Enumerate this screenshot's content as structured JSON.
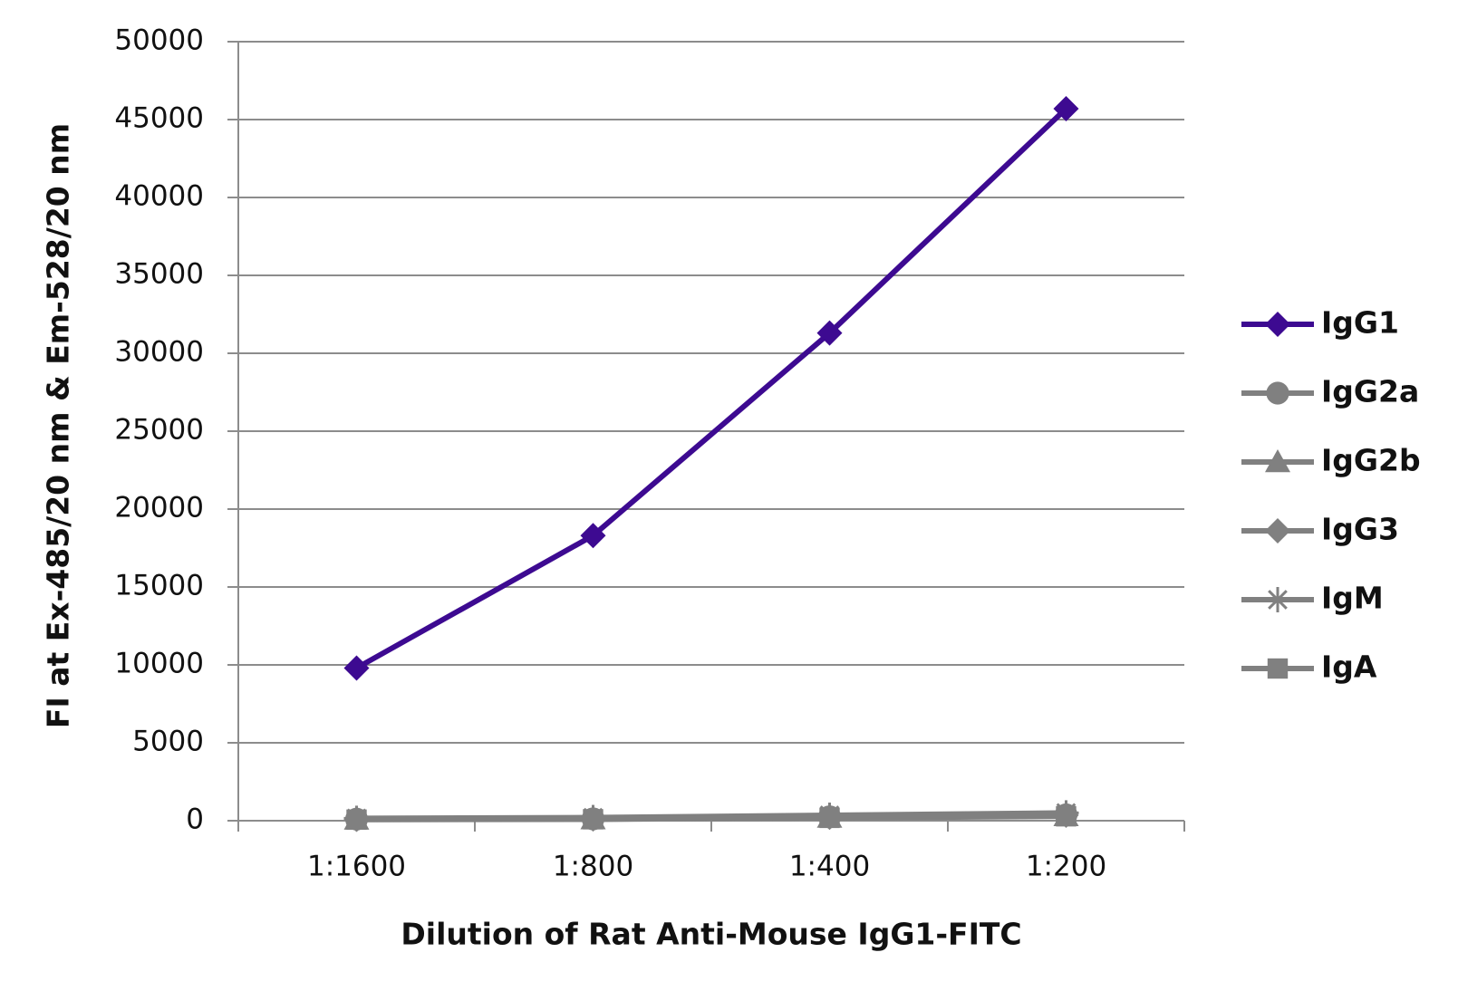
{
  "chart_data": {
    "type": "line",
    "x_label": "Dilution of Rat Anti-Mouse IgG1-FITC",
    "y_label": "FI at Ex-485/20 nm & Em-528/20 nm",
    "categories": [
      "1:1600",
      "1:800",
      "1:400",
      "1:200"
    ],
    "series": [
      {
        "name": "IgG1",
        "color": "#3d0a91",
        "marker": "diamond",
        "values": [
          9800,
          18300,
          31300,
          45700
        ]
      },
      {
        "name": "IgG2a",
        "color": "#808080",
        "marker": "circle",
        "values": [
          100,
          120,
          250,
          380
        ]
      },
      {
        "name": "IgG2b",
        "color": "#808080",
        "marker": "triangle",
        "values": [
          80,
          100,
          200,
          300
        ]
      },
      {
        "name": "IgG3",
        "color": "#808080",
        "marker": "diamond",
        "values": [
          90,
          110,
          220,
          350
        ]
      },
      {
        "name": "IgM",
        "color": "#808080",
        "marker": "asterisk",
        "values": [
          150,
          200,
          350,
          500
        ]
      },
      {
        "name": "IgA",
        "color": "#808080",
        "marker": "square",
        "values": [
          70,
          90,
          180,
          280
        ]
      }
    ],
    "ylim": [
      0,
      50000
    ],
    "yticks": [
      0,
      5000,
      10000,
      15000,
      20000,
      25000,
      30000,
      35000,
      40000,
      45000,
      50000
    ],
    "grid": true,
    "legend": "right"
  }
}
